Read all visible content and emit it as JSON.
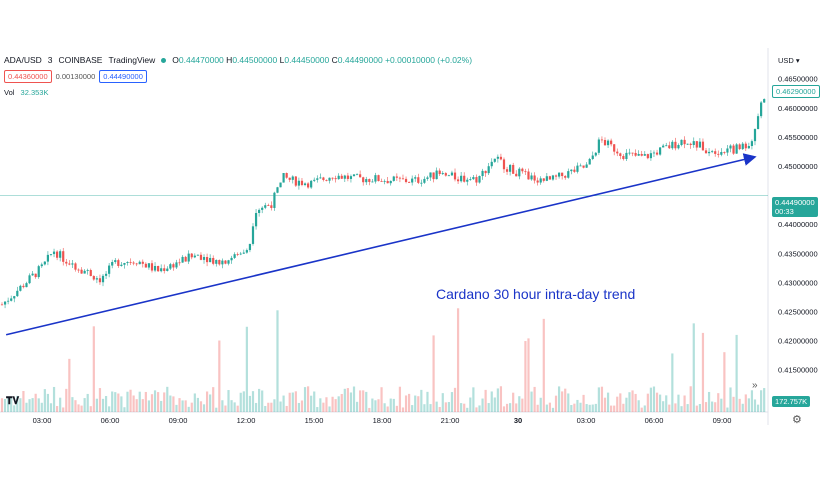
{
  "header": {
    "symbol": "ADA/USD",
    "interval": "3",
    "exchange": "COINBASE",
    "source": "TradingView",
    "ohlc": {
      "o_label": "O",
      "o": "0.44470000",
      "h_label": "H",
      "h": "0.44500000",
      "l_label": "L",
      "l": "0.44450000",
      "c_label": "C",
      "c": "0.44490000",
      "change": "+0.00010000 (+0.02%)"
    }
  },
  "order_box": {
    "sell": "0.44360000",
    "spread": "0.00130000",
    "buy": "0.44490000"
  },
  "volume": {
    "label": "Vol",
    "value": "32.353K",
    "tag": "172.757K"
  },
  "price_axis": {
    "currency": "USD",
    "last_high_tag": "0.46290000",
    "current_price_tag": "0.44490000",
    "countdown": "00:33"
  },
  "annotation": {
    "text": "Cardano 30 hour intra-day trend"
  },
  "icons": {
    "logo": "tradingview-logo-icon",
    "nav": "double-chevron-right-icon",
    "settings": "gear-icon"
  },
  "colors": {
    "up": "#26a69a",
    "down": "#ef5350",
    "trendline": "#1a34c8",
    "axis_text": "#131722"
  },
  "chart_data": {
    "type": "candlestick",
    "xlabel": "",
    "ylabel": "",
    "y_ticks": [
      "0.46500000",
      "0.46000000",
      "0.45500000",
      "0.45000000",
      "0.44000000",
      "0.43500000",
      "0.43000000",
      "0.42500000",
      "0.42000000",
      "0.41500000"
    ],
    "ylim": [
      0.4115,
      0.4665
    ],
    "x_ticks": [
      "03:00",
      "06:00",
      "09:00",
      "12:00",
      "15:00",
      "18:00",
      "21:00",
      "30",
      "03:00",
      "06:00",
      "09:00"
    ],
    "grid": false,
    "price_path": [
      {
        "t": 0,
        "p": 0.4262
      },
      {
        "t": 1,
        "p": 0.4295
      },
      {
        "t": 2,
        "p": 0.4328
      },
      {
        "t": 2.5,
        "p": 0.4355
      },
      {
        "t": 3,
        "p": 0.434
      },
      {
        "t": 4,
        "p": 0.432
      },
      {
        "t": 4.8,
        "p": 0.4305
      },
      {
        "t": 5.5,
        "p": 0.4335
      },
      {
        "t": 6.5,
        "p": 0.4338
      },
      {
        "t": 7.5,
        "p": 0.432
      },
      {
        "t": 8.5,
        "p": 0.4335
      },
      {
        "t": 9.5,
        "p": 0.4348
      },
      {
        "t": 10.5,
        "p": 0.4335
      },
      {
        "t": 11.5,
        "p": 0.4348
      },
      {
        "t": 12.0,
        "p": 0.437
      },
      {
        "t": 12.2,
        "p": 0.4425
      },
      {
        "t": 13.0,
        "p": 0.4435
      },
      {
        "t": 13.6,
        "p": 0.448
      },
      {
        "t": 14.0,
        "p": 0.4475
      },
      {
        "t": 15.0,
        "p": 0.447
      },
      {
        "t": 16.0,
        "p": 0.4485
      },
      {
        "t": 17.0,
        "p": 0.4478
      },
      {
        "t": 18.0,
        "p": 0.4478
      },
      {
        "t": 19.0,
        "p": 0.4475
      },
      {
        "t": 20.0,
        "p": 0.4475
      },
      {
        "t": 21.0,
        "p": 0.4485
      },
      {
        "t": 22.0,
        "p": 0.448
      },
      {
        "t": 23.0,
        "p": 0.4478
      },
      {
        "t": 23.8,
        "p": 0.4515
      },
      {
        "t": 24.5,
        "p": 0.4495
      },
      {
        "t": 25.5,
        "p": 0.448
      },
      {
        "t": 26.5,
        "p": 0.4475
      },
      {
        "t": 27.5,
        "p": 0.449
      },
      {
        "t": 28.3,
        "p": 0.45
      },
      {
        "t": 28.9,
        "p": 0.4545
      },
      {
        "t": 30.0,
        "p": 0.452
      },
      {
        "t": 31.0,
        "p": 0.4515
      },
      {
        "t": 32.0,
        "p": 0.453
      },
      {
        "t": 33.0,
        "p": 0.4545
      },
      {
        "t": 34.0,
        "p": 0.453
      },
      {
        "t": 35.0,
        "p": 0.4525
      },
      {
        "t": 36.2,
        "p": 0.454
      },
      {
        "t": 36.6,
        "p": 0.46
      },
      {
        "t": 36.9,
        "p": 0.4629
      }
    ],
    "trendline": {
      "start": {
        "t": 0.2,
        "p": 0.421
      },
      "end": {
        "t": 36.3,
        "p": 0.4515
      }
    },
    "current_price_line": 0.4449
  }
}
